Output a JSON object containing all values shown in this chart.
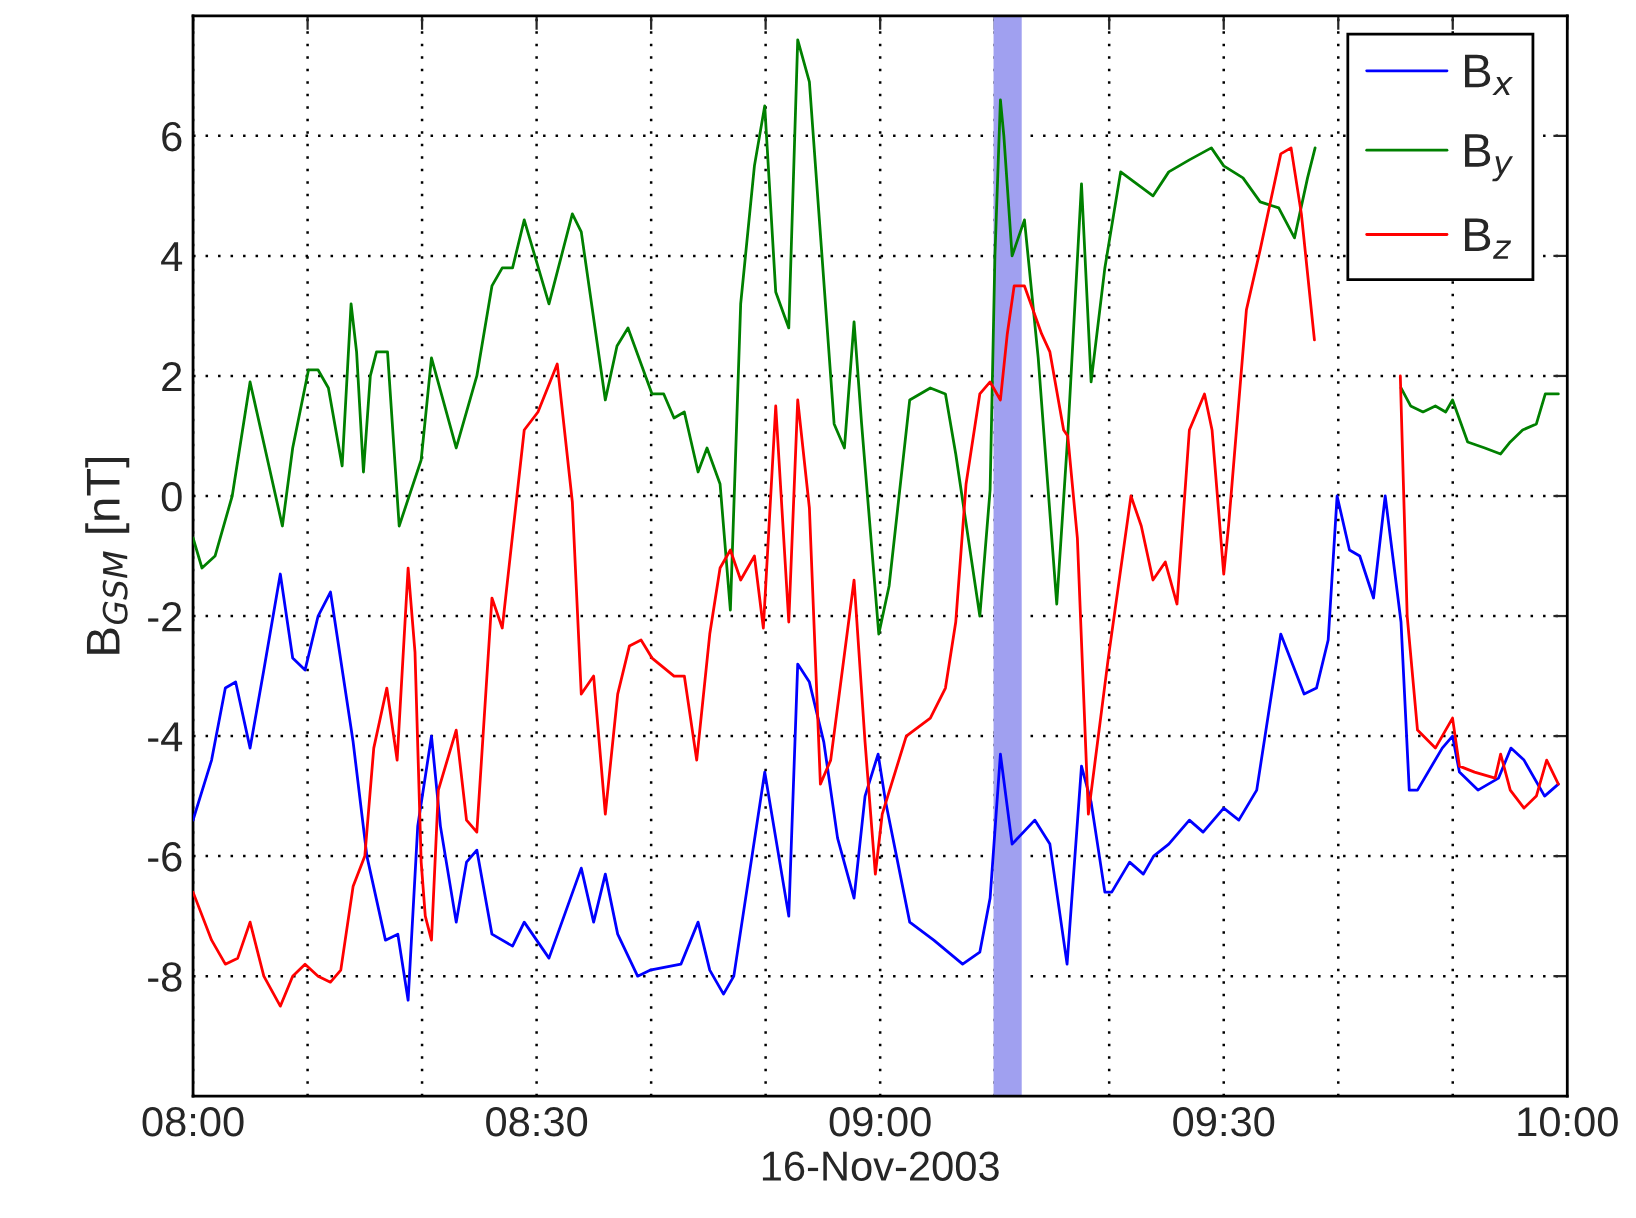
{
  "chart_data": {
    "type": "line",
    "xlabel": "16-Nov-2003",
    "ylabel": "B$_{GSM}$ [nT]",
    "xlim": [
      8,
      10
    ],
    "ylim": [
      -10,
      8
    ],
    "xticks": [
      {
        "value": 8,
        "label": "08:00"
      },
      {
        "value": 8.1667,
        "label": null
      },
      {
        "value": 8.3333,
        "label": null
      },
      {
        "value": 8.5,
        "label": "08:30"
      },
      {
        "value": 8.6667,
        "label": null
      },
      {
        "value": 8.8333,
        "label": null
      },
      {
        "value": 9,
        "label": "09:00"
      },
      {
        "value": 9.1667,
        "label": null
      },
      {
        "value": 9.3333,
        "label": null
      },
      {
        "value": 9.5,
        "label": "09:30"
      },
      {
        "value": 9.6667,
        "label": null
      },
      {
        "value": 9.8333,
        "label": null
      },
      {
        "value": 10,
        "label": "10:00"
      }
    ],
    "yticks": [
      -8,
      -6,
      -4,
      -2,
      0,
      2,
      4,
      6
    ],
    "grid": true,
    "legend": "top right",
    "line_style": "solid",
    "bands": [
      {
        "axis": "x",
        "from": 9.165,
        "to": 9.206,
        "color": "#a0a0f0"
      }
    ],
    "series": [
      {
        "name": "B$_{x}$",
        "color": "#0000ff",
        "x": [
          8.0,
          8.027,
          8.047,
          8.062,
          8.083,
          8.103,
          8.127,
          8.145,
          8.163,
          8.182,
          8.2,
          8.233,
          8.253,
          8.28,
          8.298,
          8.313,
          8.327,
          8.347,
          8.36,
          8.383,
          8.398,
          8.413,
          8.435,
          8.465,
          8.482,
          8.518,
          8.565,
          8.583,
          8.6,
          8.618,
          8.647,
          8.665,
          8.71,
          8.735,
          8.752,
          8.772,
          8.787,
          8.832,
          8.867,
          8.88,
          8.897,
          8.918,
          8.938,
          8.962,
          8.978,
          8.997,
          9.008,
          9.043,
          9.078,
          9.12,
          9.145,
          9.16,
          9.175,
          9.192,
          9.225,
          9.247,
          9.272,
          9.293,
          9.307,
          9.327,
          9.337,
          9.363,
          9.383,
          9.398,
          9.42,
          9.45,
          9.47,
          9.5,
          9.522,
          9.548,
          9.583,
          9.617,
          9.635,
          9.652,
          9.665,
          9.683,
          9.698,
          9.718,
          9.735,
          9.758,
          9.77,
          9.782,
          9.818,
          9.833,
          9.843,
          9.87,
          9.9,
          9.918,
          9.937,
          9.967,
          9.987
        ],
        "values": [
          -5.4,
          -4.4,
          -3.2,
          -3.1,
          -4.2,
          -2.9,
          -1.3,
          -2.7,
          -2.9,
          -2.0,
          -1.6,
          -4.1,
          -6.0,
          -7.4,
          -7.3,
          -8.4,
          -5.5,
          -4.0,
          -5.5,
          -7.1,
          -6.1,
          -5.9,
          -7.3,
          -7.5,
          -7.1,
          -7.7,
          -6.2,
          -7.1,
          -6.3,
          -7.3,
          -8.0,
          -7.9,
          -7.8,
          -7.1,
          -7.9,
          -8.3,
          -8.0,
          -4.6,
          -7.0,
          -2.8,
          -3.1,
          -4.1,
          -5.7,
          -6.7,
          -5.0,
          -4.3,
          -5.1,
          -7.1,
          -7.4,
          -7.8,
          -7.6,
          -6.7,
          -4.3,
          -5.8,
          -5.4,
          -5.8,
          -7.8,
          -4.5,
          -5.1,
          -6.6,
          -6.6,
          -6.1,
          -6.3,
          -6.0,
          -5.8,
          -5.4,
          -5.6,
          -5.2,
          -5.4,
          -4.9,
          -2.3,
          -3.3,
          -3.2,
          -2.4,
          0.0,
          -0.9,
          -1.0,
          -1.7,
          0.0,
          -2.1,
          -4.9,
          -4.9,
          -4.2,
          -4.0,
          -4.6,
          -4.9,
          -4.7,
          -4.2,
          -4.4,
          -5.0,
          -4.8
        ]
      },
      {
        "name": "B$_{y}$",
        "color": "#008000",
        "x": [
          8.0,
          8.013,
          8.032,
          8.057,
          8.083,
          8.13,
          8.145,
          8.168,
          8.182,
          8.197,
          8.217,
          8.23,
          8.238,
          8.248,
          8.258,
          8.267,
          8.283,
          8.3,
          8.332,
          8.347,
          8.383,
          8.413,
          8.435,
          8.45,
          8.465,
          8.482,
          8.518,
          8.552,
          8.565,
          8.6,
          8.617,
          8.633,
          8.668,
          8.685,
          8.7,
          8.715,
          8.735,
          8.748,
          8.767,
          8.782,
          8.797,
          8.817,
          8.832,
          8.848,
          8.867,
          8.88,
          8.897,
          8.933,
          8.948,
          8.962,
          8.973,
          8.998,
          9.013,
          9.043,
          9.073,
          9.095,
          9.11,
          9.145,
          9.16,
          9.167,
          9.175,
          9.18,
          9.192,
          9.21,
          9.23,
          9.257,
          9.273,
          9.293,
          9.307,
          9.327,
          9.35,
          9.397,
          9.42,
          9.45,
          9.482,
          9.5,
          9.528,
          9.553,
          9.58,
          9.603,
          9.622,
          9.633,
          9.7,
          9.758,
          9.772,
          9.79,
          9.808,
          9.823,
          9.833,
          9.855,
          9.88,
          9.903,
          9.917,
          9.935,
          9.955,
          9.968,
          9.987
        ],
        "values": [
          -0.7,
          -1.2,
          -1.0,
          0.0,
          1.9,
          -0.5,
          0.8,
          2.1,
          2.1,
          1.8,
          0.5,
          3.2,
          2.4,
          0.4,
          2.0,
          2.4,
          2.4,
          -0.5,
          0.6,
          2.3,
          0.8,
          2.0,
          3.5,
          3.8,
          3.8,
          4.6,
          3.2,
          4.7,
          4.4,
          1.6,
          2.5,
          2.8,
          1.7,
          1.7,
          1.3,
          1.4,
          0.4,
          0.8,
          0.2,
          -1.9,
          3.2,
          5.5,
          6.5,
          3.4,
          2.8,
          7.6,
          6.9,
          1.2,
          0.8,
          2.9,
          1.2,
          -2.3,
          -1.5,
          1.6,
          1.8,
          1.7,
          0.7,
          -2.0,
          0.1,
          4.0,
          6.6,
          6.0,
          4.0,
          4.6,
          2.3,
          -1.8,
          1.0,
          5.2,
          1.9,
          3.8,
          5.4,
          5.0,
          5.4,
          5.6,
          5.8,
          5.5,
          5.3,
          4.9,
          4.8,
          4.3,
          5.3,
          5.8,
          null,
          1.8,
          1.5,
          1.4,
          1.5,
          1.4,
          1.6,
          0.9,
          0.8,
          0.7,
          0.9,
          1.1,
          1.2,
          1.7,
          1.7
        ]
      },
      {
        "name": "B$_{z}$",
        "color": "#ff0000",
        "x": [
          8.0,
          8.027,
          8.047,
          8.065,
          8.083,
          8.103,
          8.127,
          8.145,
          8.163,
          8.182,
          8.2,
          8.215,
          8.233,
          8.25,
          8.263,
          8.282,
          8.297,
          8.313,
          8.323,
          8.332,
          8.338,
          8.347,
          8.357,
          8.383,
          8.398,
          8.413,
          8.435,
          8.45,
          8.482,
          8.502,
          8.53,
          8.552,
          8.565,
          8.583,
          8.6,
          8.618,
          8.635,
          8.652,
          8.668,
          8.7,
          8.715,
          8.733,
          8.752,
          8.767,
          8.782,
          8.797,
          8.817,
          8.83,
          8.848,
          8.867,
          8.88,
          8.897,
          8.913,
          8.928,
          8.962,
          8.978,
          8.993,
          9.003,
          9.038,
          9.073,
          9.095,
          9.11,
          9.125,
          9.145,
          9.16,
          9.175,
          9.185,
          9.195,
          9.21,
          9.235,
          9.247,
          9.267,
          9.273,
          9.287,
          9.303,
          9.332,
          9.365,
          9.38,
          9.397,
          9.415,
          9.432,
          9.45,
          9.472,
          9.483,
          9.5,
          9.507,
          9.533,
          9.553,
          9.583,
          9.598,
          9.613,
          9.632,
          9.7,
          9.757,
          9.767,
          9.782,
          9.808,
          9.833,
          9.843,
          9.865,
          9.895,
          9.903,
          9.917,
          9.937,
          9.955,
          9.97,
          9.987
        ],
        "values": [
          -6.6,
          -7.4,
          -7.8,
          -7.7,
          -7.1,
          -8.0,
          -8.5,
          -8.0,
          -7.8,
          -8.0,
          -8.1,
          -7.9,
          -6.5,
          -6.0,
          -4.2,
          -3.2,
          -4.4,
          -1.2,
          -2.6,
          -6.1,
          -7.0,
          -7.4,
          -4.9,
          -3.9,
          -5.4,
          -5.6,
          -1.7,
          -2.2,
          1.1,
          1.4,
          2.2,
          -0.1,
          -3.3,
          -3.0,
          -5.3,
          -3.3,
          -2.5,
          -2.4,
          -2.7,
          -3.0,
          -3.0,
          -4.4,
          -2.3,
          -1.2,
          -0.9,
          -1.4,
          -1.0,
          -2.2,
          1.5,
          -2.1,
          1.6,
          -0.2,
          -4.8,
          -4.4,
          -1.4,
          -4.1,
          -6.3,
          -5.3,
          -4.0,
          -3.7,
          -3.2,
          -2.1,
          0.2,
          1.7,
          1.9,
          1.6,
          2.7,
          3.5,
          3.5,
          2.7,
          2.4,
          1.1,
          1.0,
          -0.7,
          -5.3,
          -2.7,
          0.0,
          -0.5,
          -1.4,
          -1.1,
          -1.8,
          1.1,
          1.7,
          1.1,
          -1.3,
          -0.5,
          3.1,
          4.1,
          5.7,
          5.8,
          4.7,
          2.6,
          null,
          2.0,
          -2.0,
          -3.9,
          -4.2,
          -3.7,
          -4.5,
          -4.6,
          -4.7,
          -4.3,
          -4.9,
          -5.2,
          -5.0,
          -4.4,
          -4.8
        ]
      }
    ]
  }
}
